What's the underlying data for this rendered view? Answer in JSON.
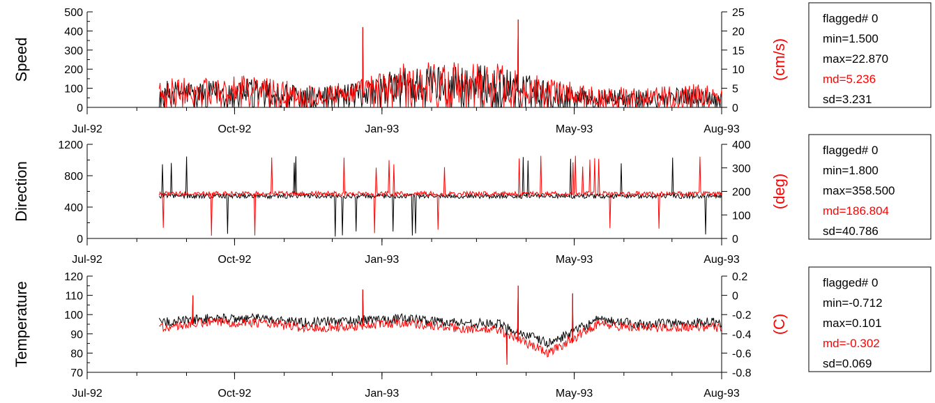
{
  "colors": {
    "primary_series": "#000000",
    "secondary_series": "#ff0000",
    "axes": "#000000"
  },
  "chart_data": [
    {
      "type": "line",
      "ylabel": "Speed",
      "ylabel_right": "(cm/s)",
      "x_ticks": [
        "Jul-92",
        "Oct-92",
        "Jan-93",
        "May-93",
        "Aug-93"
      ],
      "x_tick_dates": [
        "1992-07-01",
        "1992-10-01",
        "1993-01-01",
        "1993-05-01",
        "1993-08-01"
      ],
      "xlim": [
        "1992-07-01",
        "1993-08-01"
      ],
      "ylim": [
        0,
        500
      ],
      "yticks": [
        0,
        100,
        200,
        300,
        400,
        500
      ],
      "ylim_right": [
        0,
        25
      ],
      "yticks_right": [
        0,
        5,
        10,
        15,
        20,
        25
      ],
      "data_range": [
        "1992-08-15",
        "1993-08-01"
      ],
      "series": [
        {
          "color": "#000000",
          "axis": "left",
          "x": [
            "1992-08-15",
            "1992-09-15",
            "1992-10-15",
            "1992-11-15",
            "1992-12-15",
            "1993-01-15",
            "1993-02-15",
            "1993-03-15",
            "1993-04-15",
            "1993-05-15",
            "1993-06-15",
            "1993-07-15",
            "1993-08-01"
          ],
          "y": [
            90,
            90,
            100,
            70,
            80,
            140,
            150,
            140,
            90,
            60,
            60,
            70,
            60
          ]
        },
        {
          "color": "#ff0000",
          "axis": "left",
          "x": [
            "1992-08-15",
            "1992-09-15",
            "1992-10-15",
            "1992-11-15",
            "1992-12-15",
            "1993-01-15",
            "1993-02-15",
            "1993-03-15",
            "1993-04-15",
            "1993-05-15",
            "1993-06-15",
            "1993-07-15",
            "1993-08-01"
          ],
          "y": [
            100,
            100,
            110,
            80,
            90,
            150,
            160,
            150,
            100,
            70,
            70,
            80,
            70
          ]
        }
      ],
      "peaks": [
        [
          "1992-12-20",
          420
        ],
        [
          "1993-03-27",
          460
        ]
      ],
      "stats": {
        "flagged": "flagged# 0",
        "min": "min=1.500",
        "max": "max=22.870",
        "md": "md=5.236",
        "sd": "sd=3.231"
      }
    },
    {
      "type": "line",
      "ylabel": "Direction",
      "ylabel_right": "(deg)",
      "x_ticks": [
        "Jul-92",
        "Oct-92",
        "Jan-93",
        "May-93",
        "Aug-93"
      ],
      "x_tick_dates": [
        "1992-07-01",
        "1992-10-01",
        "1993-01-01",
        "1993-05-01",
        "1993-08-01"
      ],
      "xlim": [
        "1992-07-01",
        "1993-08-01"
      ],
      "ylim": [
        0,
        1200
      ],
      "yticks": [
        0,
        400,
        800,
        1200
      ],
      "ylim_right": [
        0,
        400
      ],
      "yticks_right": [
        0,
        100,
        200,
        300,
        400
      ],
      "data_range": [
        "1992-08-15",
        "1993-08-01"
      ],
      "series": [
        {
          "color": "#000000",
          "axis": "left",
          "x": [
            "1992-08-15",
            "1992-10-15",
            "1992-12-15",
            "1993-02-15",
            "1993-04-15",
            "1993-06-15",
            "1993-08-01"
          ],
          "y": [
            540,
            540,
            540,
            540,
            540,
            540,
            540
          ]
        },
        {
          "color": "#ff0000",
          "axis": "left",
          "x": [
            "1992-08-15",
            "1992-10-15",
            "1992-12-15",
            "1993-02-15",
            "1993-04-15",
            "1993-06-15",
            "1993-08-01"
          ],
          "y": [
            570,
            570,
            570,
            570,
            570,
            570,
            570
          ]
        }
      ],
      "stats": {
        "flagged": "flagged# 0",
        "min": "min=1.800",
        "max": "max=358.500",
        "md": "md=186.804",
        "sd": "sd=40.786"
      }
    },
    {
      "type": "line",
      "ylabel": "Temperature",
      "ylabel_right": "(C)",
      "x_ticks": [
        "Jul-92",
        "Oct-92",
        "Jan-93",
        "May-93",
        "Aug-93"
      ],
      "x_tick_dates": [
        "1992-07-01",
        "1992-10-01",
        "1993-01-01",
        "1993-05-01",
        "1993-08-01"
      ],
      "xlim": [
        "1992-07-01",
        "1993-08-01"
      ],
      "ylim": [
        70,
        120
      ],
      "yticks": [
        70,
        80,
        90,
        100,
        110,
        120
      ],
      "ylim_right": [
        -0.8,
        0.2
      ],
      "yticks_right": [
        -0.8,
        -0.6,
        -0.4,
        -0.2,
        0,
        0.2
      ],
      "data_range": [
        "1992-08-15",
        "1993-08-01"
      ],
      "series": [
        {
          "color": "#000000",
          "axis": "left",
          "x": [
            "1992-08-15",
            "1992-09-15",
            "1992-10-15",
            "1992-11-15",
            "1992-12-15",
            "1993-01-15",
            "1993-02-15",
            "1993-03-15",
            "1993-04-15",
            "1993-05-15",
            "1993-06-15",
            "1993-07-15",
            "1993-08-01"
          ],
          "y": [
            96,
            98,
            98,
            96,
            97,
            98,
            96,
            95,
            85,
            97,
            95,
            96,
            96
          ]
        },
        {
          "color": "#ff0000",
          "axis": "left",
          "x": [
            "1992-08-15",
            "1992-09-15",
            "1992-10-15",
            "1992-11-15",
            "1992-12-15",
            "1993-01-15",
            "1993-02-15",
            "1993-03-15",
            "1993-04-15",
            "1993-05-15",
            "1993-06-15",
            "1993-07-15",
            "1993-08-01"
          ],
          "y": [
            93,
            96,
            96,
            93,
            94,
            96,
            93,
            92,
            80,
            95,
            93,
            94,
            93
          ]
        }
      ],
      "peaks": [
        [
          "1992-09-05",
          110
        ],
        [
          "1992-12-20",
          113
        ],
        [
          "1993-03-27",
          115
        ],
        [
          "1993-04-30",
          111
        ]
      ],
      "troughs": [
        [
          "1993-03-20",
          74
        ]
      ],
      "stats": {
        "flagged": "flagged# 0",
        "min": "min=-0.712",
        "max": "max=0.101",
        "md": "md=-0.302",
        "sd": "sd=0.069"
      }
    }
  ]
}
